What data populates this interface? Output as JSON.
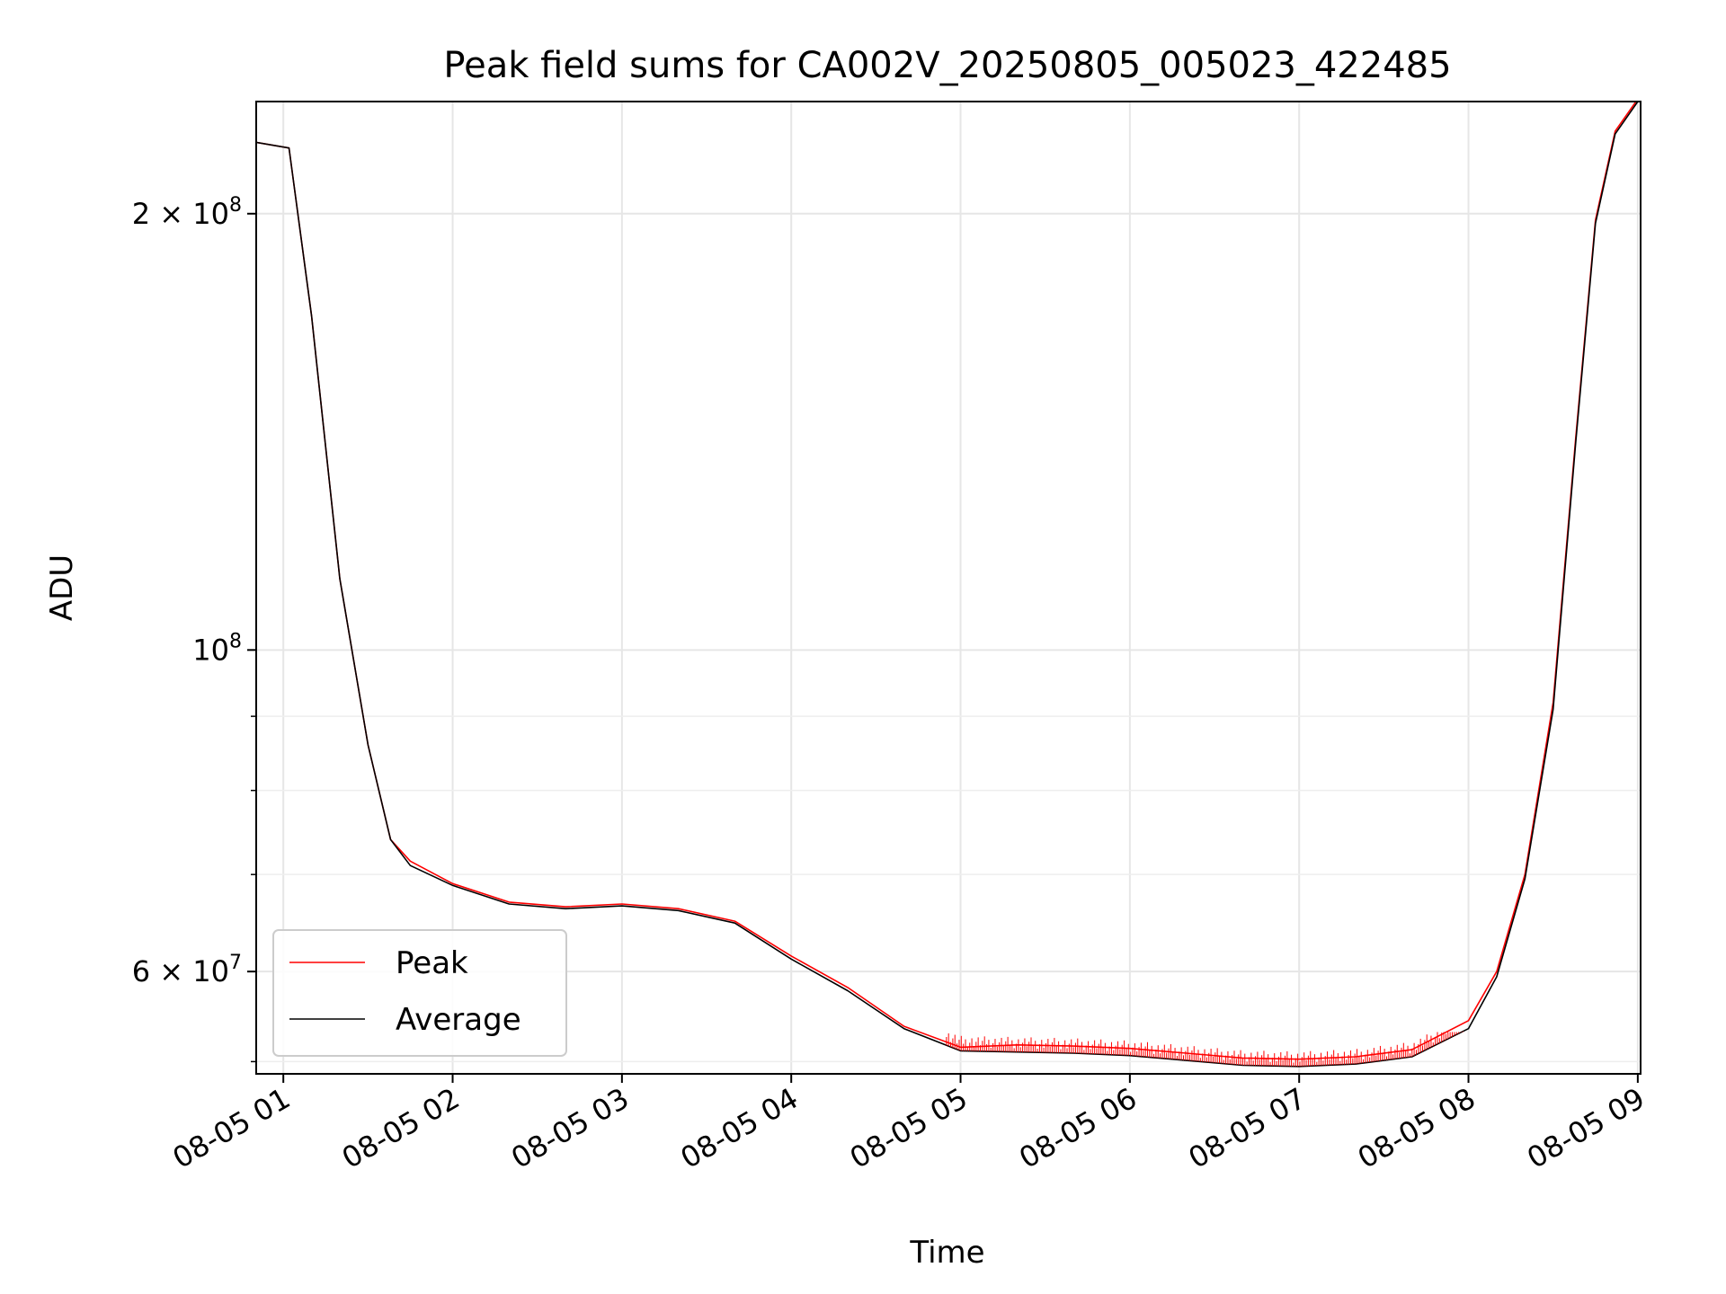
{
  "chart_data": {
    "type": "line",
    "title": "Peak field sums for CA002V_20250805_005023_422485",
    "xlabel": "Time",
    "ylabel": "ADU",
    "xscale": "time",
    "yscale": "log",
    "xlim": [
      "2025-08-05T00:50:23",
      "2025-08-05T09:01:00"
    ],
    "ylim": [
      51000000,
      239000000
    ],
    "grid": true,
    "legend_position": "lower-left",
    "x_ticks": [
      {
        "value": "2025-08-05T01:00:00",
        "label": "08-05 01"
      },
      {
        "value": "2025-08-05T02:00:00",
        "label": "08-05 02"
      },
      {
        "value": "2025-08-05T03:00:00",
        "label": "08-05 03"
      },
      {
        "value": "2025-08-05T04:00:00",
        "label": "08-05 04"
      },
      {
        "value": "2025-08-05T05:00:00",
        "label": "08-05 05"
      },
      {
        "value": "2025-08-05T06:00:00",
        "label": "08-05 06"
      },
      {
        "value": "2025-08-05T07:00:00",
        "label": "08-05 07"
      },
      {
        "value": "2025-08-05T08:00:00",
        "label": "08-05 08"
      },
      {
        "value": "2025-08-05T09:00:00",
        "label": "08-05 09"
      }
    ],
    "y_ticks": [
      {
        "value": 60000000,
        "mantissa": "6",
        "base": "10",
        "exp": "7"
      },
      {
        "value": 100000000,
        "mantissa": "",
        "base": "10",
        "exp": "8"
      },
      {
        "value": 200000000,
        "mantissa": "2",
        "base": "10",
        "exp": "8"
      }
    ],
    "y_minor_ticks": [
      52000000,
      70000000,
      80000000,
      90000000
    ],
    "series": [
      {
        "name": "Peak",
        "color": "#ff0000",
        "x": [
          "2025-08-05T00:50:23",
          "2025-08-05T01:02:00",
          "2025-08-05T01:10:00",
          "2025-08-05T01:20:00",
          "2025-08-05T01:30:00",
          "2025-08-05T01:38:00",
          "2025-08-05T01:45:00",
          "2025-08-05T02:00:00",
          "2025-08-05T02:20:00",
          "2025-08-05T02:40:00",
          "2025-08-05T03:00:00",
          "2025-08-05T03:20:00",
          "2025-08-05T03:40:00",
          "2025-08-05T04:00:00",
          "2025-08-05T04:20:00",
          "2025-08-05T04:40:00",
          "2025-08-05T05:00:00",
          "2025-08-05T05:20:00",
          "2025-08-05T05:40:00",
          "2025-08-05T06:00:00",
          "2025-08-05T06:20:00",
          "2025-08-05T06:40:00",
          "2025-08-05T07:00:00",
          "2025-08-05T07:20:00",
          "2025-08-05T07:40:00",
          "2025-08-05T08:00:00",
          "2025-08-05T08:10:00",
          "2025-08-05T08:20:00",
          "2025-08-05T08:30:00",
          "2025-08-05T08:38:00",
          "2025-08-05T08:45:00",
          "2025-08-05T08:52:00",
          "2025-08-05T09:00:00"
        ],
        "values": [
          224000000,
          222000000,
          170000000,
          112000000,
          86000000,
          74000000,
          71500000,
          69000000,
          67000000,
          66500000,
          66800000,
          66300000,
          65000000,
          61500000,
          58500000,
          55000000,
          53200000,
          53400000,
          53300000,
          53100000,
          52700000,
          52300000,
          52200000,
          52400000,
          53000000,
          55500000,
          60000000,
          70000000,
          92000000,
          140000000,
          198000000,
          228000000,
          240000000
        ],
        "spikes_max": 54500000
      },
      {
        "name": "Average",
        "color": "#000000",
        "x": [
          "2025-08-05T00:50:23",
          "2025-08-05T01:02:00",
          "2025-08-05T01:10:00",
          "2025-08-05T01:20:00",
          "2025-08-05T01:30:00",
          "2025-08-05T01:38:00",
          "2025-08-05T01:45:00",
          "2025-08-05T02:00:00",
          "2025-08-05T02:20:00",
          "2025-08-05T02:40:00",
          "2025-08-05T03:00:00",
          "2025-08-05T03:20:00",
          "2025-08-05T03:40:00",
          "2025-08-05T04:00:00",
          "2025-08-05T04:20:00",
          "2025-08-05T04:40:00",
          "2025-08-05T05:00:00",
          "2025-08-05T05:20:00",
          "2025-08-05T05:40:00",
          "2025-08-05T06:00:00",
          "2025-08-05T06:20:00",
          "2025-08-05T06:40:00",
          "2025-08-05T07:00:00",
          "2025-08-05T07:20:00",
          "2025-08-05T07:40:00",
          "2025-08-05T08:00:00",
          "2025-08-05T08:10:00",
          "2025-08-05T08:20:00",
          "2025-08-05T08:30:00",
          "2025-08-05T08:38:00",
          "2025-08-05T08:45:00",
          "2025-08-05T08:52:00",
          "2025-08-05T09:00:00"
        ],
        "values": [
          224000000,
          222000000,
          170000000,
          112000000,
          86000000,
          74000000,
          71000000,
          68800000,
          66800000,
          66300000,
          66600000,
          66100000,
          64800000,
          61200000,
          58200000,
          54800000,
          52900000,
          52800000,
          52700000,
          52500000,
          52100000,
          51700000,
          51600000,
          51800000,
          52400000,
          54800000,
          59500000,
          69500000,
          91000000,
          139000000,
          197000000,
          227000000,
          239000000
        ]
      }
    ]
  }
}
